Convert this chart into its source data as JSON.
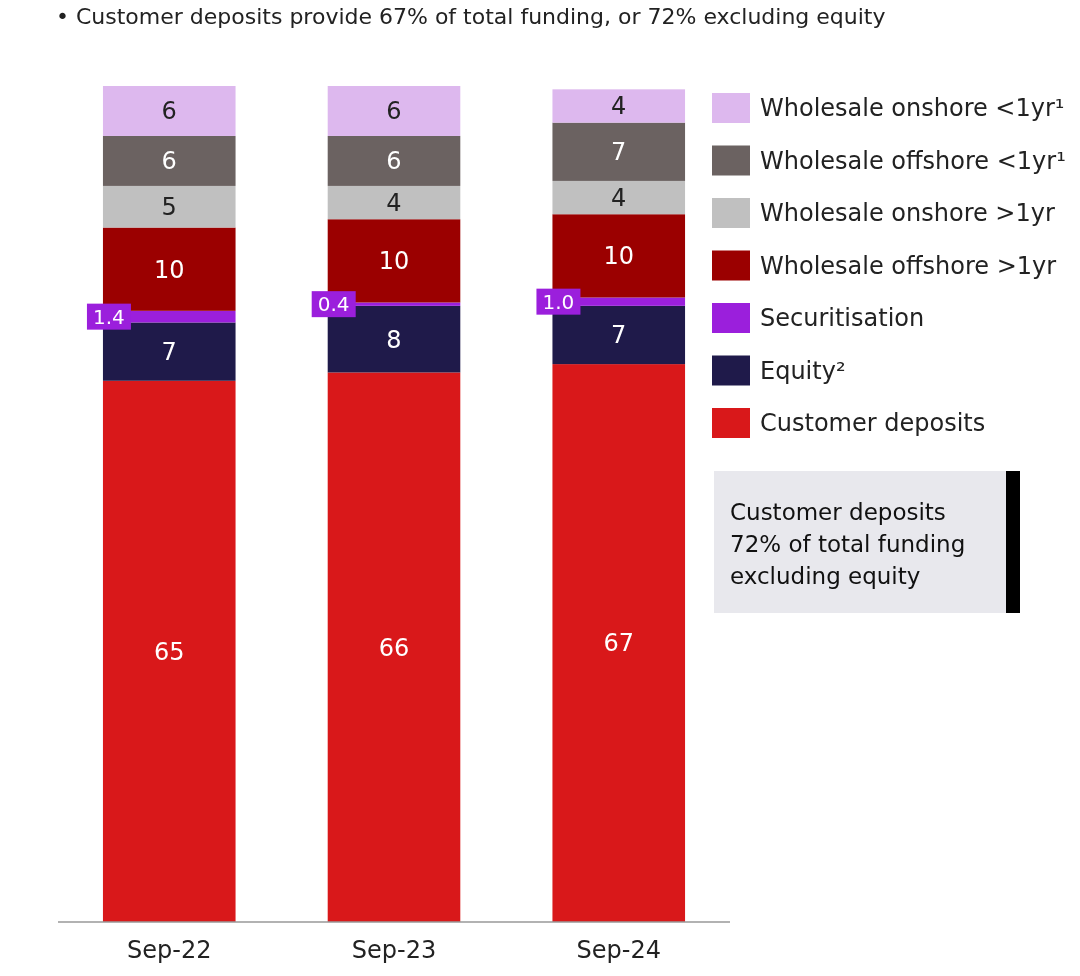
{
  "chart_data": {
    "type": "bar",
    "stacked": true,
    "legend": "right",
    "categories": [
      "Sep-22",
      "Sep-23",
      "Sep-24"
    ],
    "series": [
      {
        "name": "Customer deposits",
        "color": "#d9181a",
        "values": [
          65,
          66,
          67
        ],
        "value_labels": [
          "65",
          "66",
          "67"
        ]
      },
      {
        "name": "Equity²",
        "color": "#1f1a4a",
        "values": [
          7,
          8,
          7
        ],
        "value_labels": [
          "7",
          "8",
          "7"
        ]
      },
      {
        "name": "Securitisation",
        "color": "#9b1fdc",
        "values": [
          1.4,
          0.4,
          1.0
        ],
        "value_labels": [
          "1.4",
          "0.4",
          "1.0"
        ]
      },
      {
        "name": "Wholesale offshore >1yr",
        "color": "#9b0000",
        "values": [
          10,
          10,
          10
        ],
        "value_labels": [
          "10",
          "10",
          "10"
        ]
      },
      {
        "name": "Wholesale onshore >1yr",
        "color": "#c0c0c0",
        "values": [
          5,
          4,
          4
        ],
        "value_labels": [
          "5",
          "4",
          "4"
        ]
      },
      {
        "name": "Wholesale offshore <1yr¹",
        "color": "#6b6261",
        "values": [
          6,
          6,
          7
        ],
        "value_labels": [
          "6",
          "6",
          "7"
        ]
      },
      {
        "name": "Wholesale onshore <1yr¹",
        "color": "#ddb8ee",
        "values": [
          6,
          6,
          4
        ],
        "value_labels": [
          "6",
          "6",
          "4"
        ]
      }
    ],
    "annotations": [
      "• Customer deposits provide 67% of total funding, or 72% excluding equity",
      "Customer deposits 72% of total funding excluding equity"
    ]
  }
}
